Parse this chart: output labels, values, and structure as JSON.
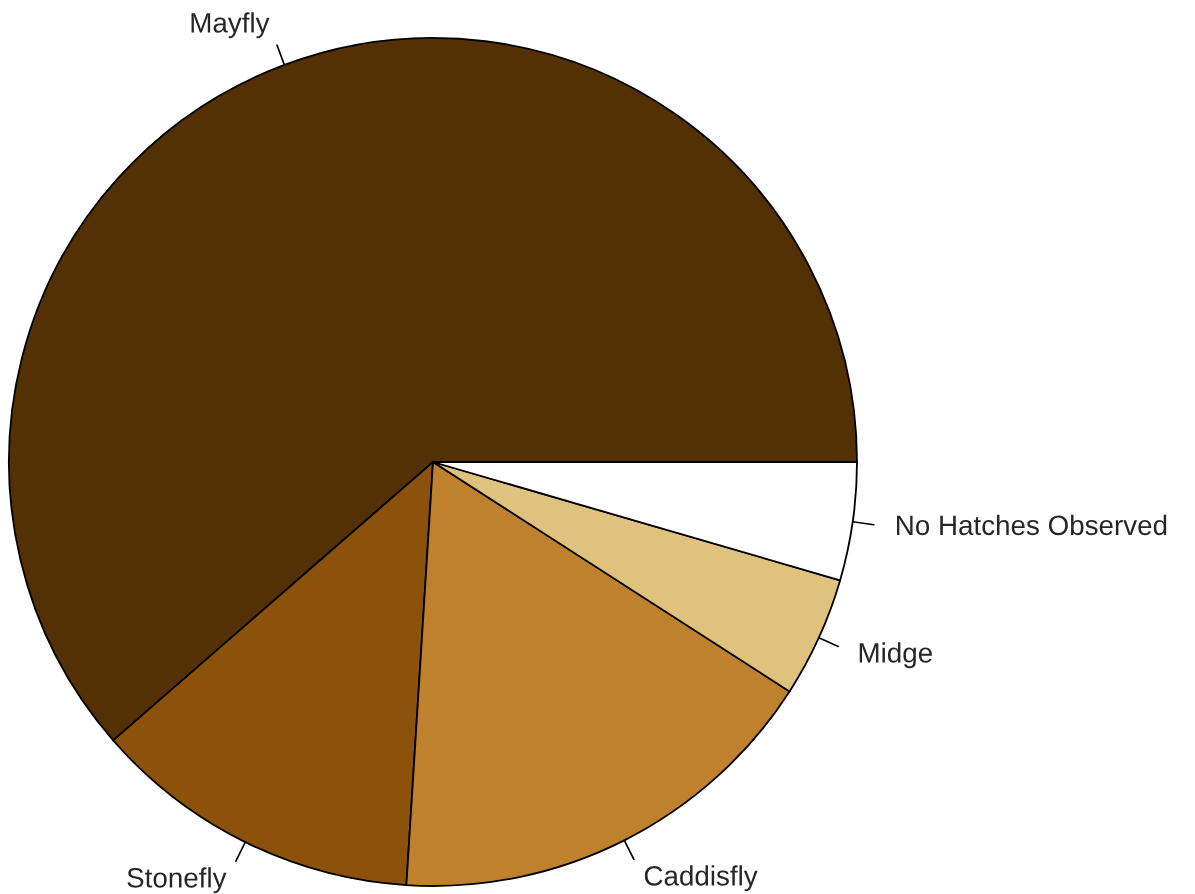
{
  "chart_data": {
    "type": "pie",
    "categories": [
      "Mayfly",
      "Stonefly",
      "Caddisfly",
      "Midge",
      "No Hatches Observed"
    ],
    "values": [
      61.4,
      12.6,
      16.9,
      4.6,
      4.5
    ],
    "colors": [
      "#543005",
      "#8c510a",
      "#bf812d",
      "#dfc27d",
      "#ffffff"
    ]
  }
}
